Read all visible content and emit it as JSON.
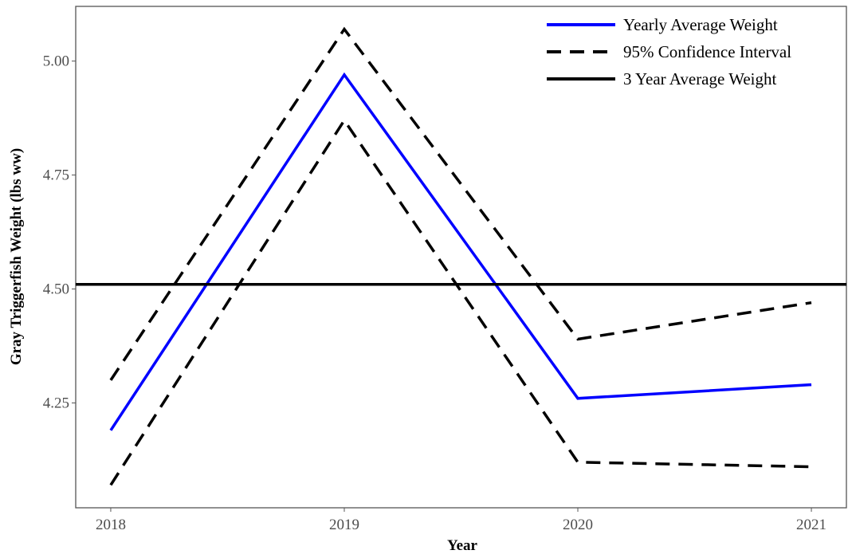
{
  "chart_data": {
    "type": "line",
    "x_label": "Year",
    "y_label": "Gray Triggerfish Weight (lbs ww)",
    "x": [
      2018,
      2019,
      2020,
      2021
    ],
    "xlim": [
      2017.85,
      2021.15
    ],
    "xticks": [
      2018,
      2019,
      2020,
      2021
    ],
    "ylim": [
      4.02,
      5.12
    ],
    "yticks": [
      {
        "value": 4.25,
        "label": "4.25"
      },
      {
        "value": 4.5,
        "label": "4.50"
      },
      {
        "value": 4.75,
        "label": "4.75"
      },
      {
        "value": 5,
        "label": "5.00"
      }
    ],
    "legend": "top-right",
    "series": [
      {
        "name": "Yearly Average Weight",
        "color": "#0000ff",
        "style": "solid",
        "values": [
          4.19,
          4.97,
          4.26,
          4.29
        ]
      },
      {
        "name": "95% Confidence Interval",
        "color": "#000000",
        "style": "dashed",
        "upper": [
          4.3,
          5.07,
          4.39,
          4.47
        ],
        "lower": [
          4.07,
          4.87,
          4.12,
          4.11
        ]
      },
      {
        "name": "3 Year Average Weight",
        "color": "#000000",
        "style": "hline",
        "value": 4.51
      }
    ]
  }
}
